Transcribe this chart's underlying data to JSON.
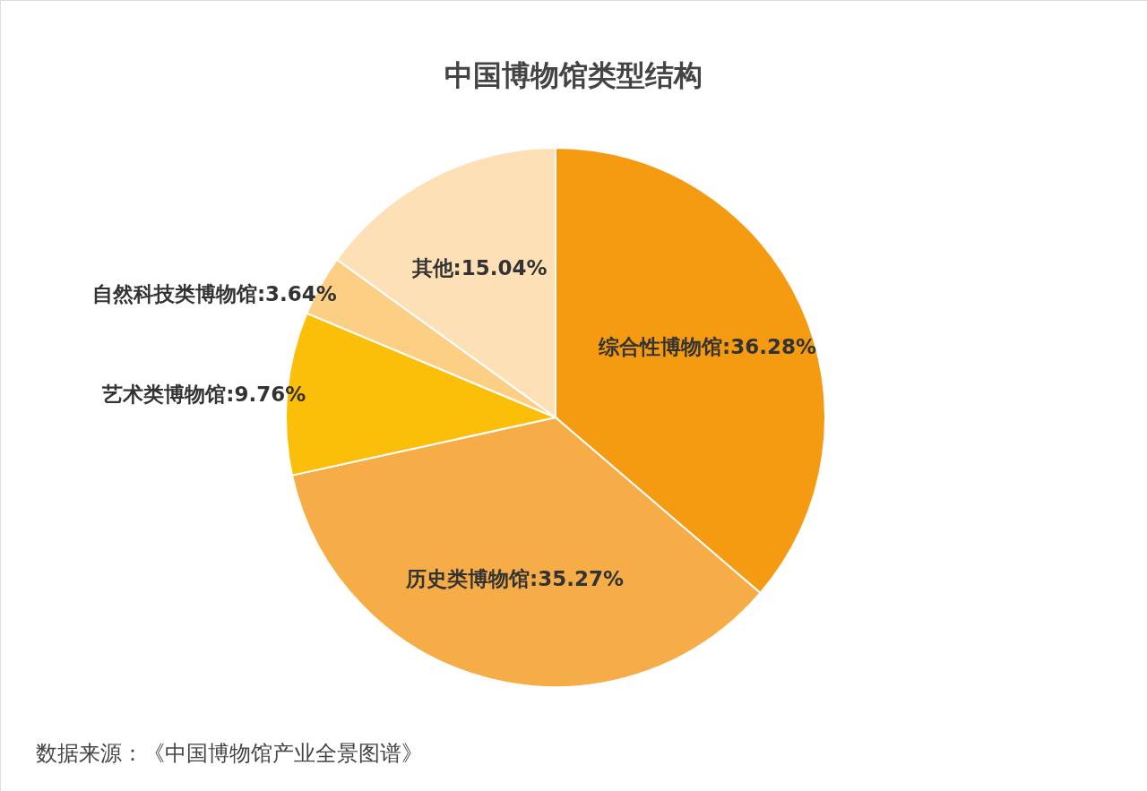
{
  "chart_data": {
    "type": "pie",
    "title": "中国博物馆类型结构",
    "categories": [
      "综合性博物馆",
      "历史类博物馆",
      "艺术类博物馆",
      "自然科技类博物馆",
      "其他"
    ],
    "values": [
      36.28,
      35.27,
      9.76,
      3.64,
      15.04
    ],
    "value_labels": [
      "36.28%",
      "35.27%",
      "9.76%",
      "3.64%",
      "15.04%"
    ],
    "colors": [
      "#f59b12",
      "#f6ad47",
      "#fbbf0a",
      "#fccf85",
      "#fde0b5"
    ],
    "annotations": [
      "数据来源：《中国博物馆产业全景图谱》"
    ]
  }
}
